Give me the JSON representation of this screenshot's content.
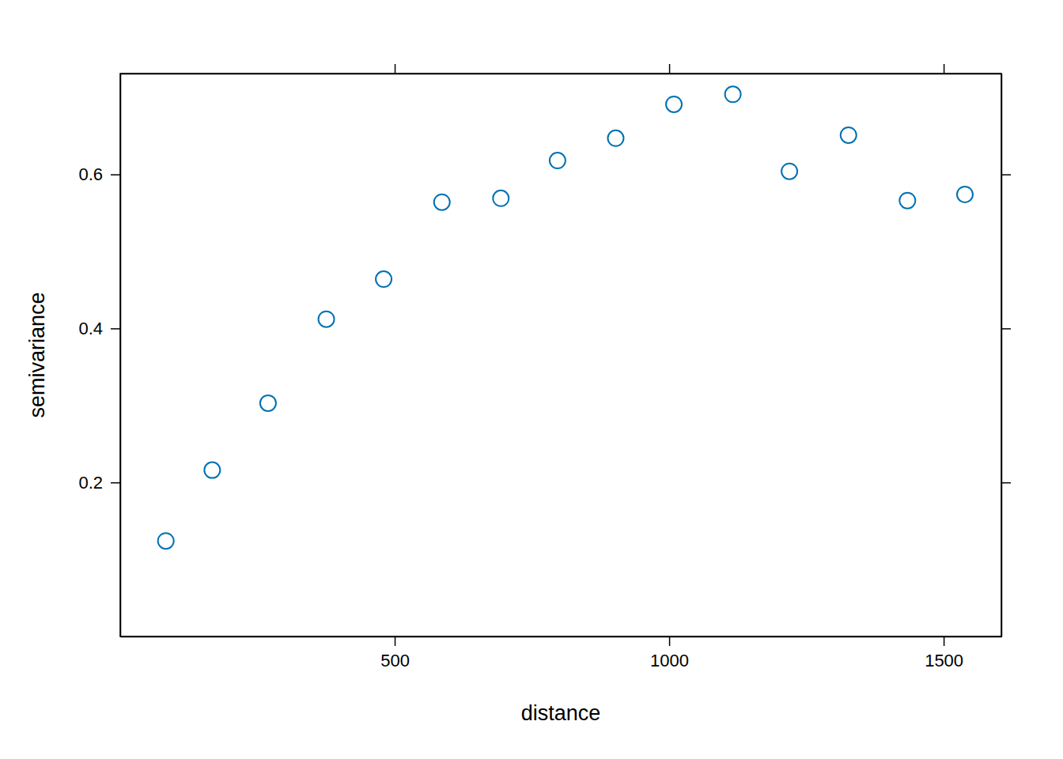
{
  "chart_data": {
    "type": "scatter",
    "x_label": "distance",
    "y_label": "semivariance",
    "x": [
      83.1,
      167.6,
      269.3,
      375.4,
      479.9,
      586.0,
      693.4,
      796.6,
      902.6,
      1008.6,
      1116.0,
      1219.0,
      1326.6,
      1434.0,
      1538.7
    ],
    "values": [
      0.124,
      0.216,
      0.303,
      0.412,
      0.464,
      0.564,
      0.569,
      0.618,
      0.647,
      0.691,
      0.704,
      0.604,
      0.651,
      0.566,
      0.574
    ],
    "color": "#0072b2",
    "marker": "circle",
    "xlim": [
      0,
      1605
    ],
    "ylim": [
      0,
      0.731
    ],
    "xticks": [
      500,
      1000,
      1500
    ],
    "yticks": [
      0.2,
      0.4,
      0.6
    ],
    "grid": false
  }
}
